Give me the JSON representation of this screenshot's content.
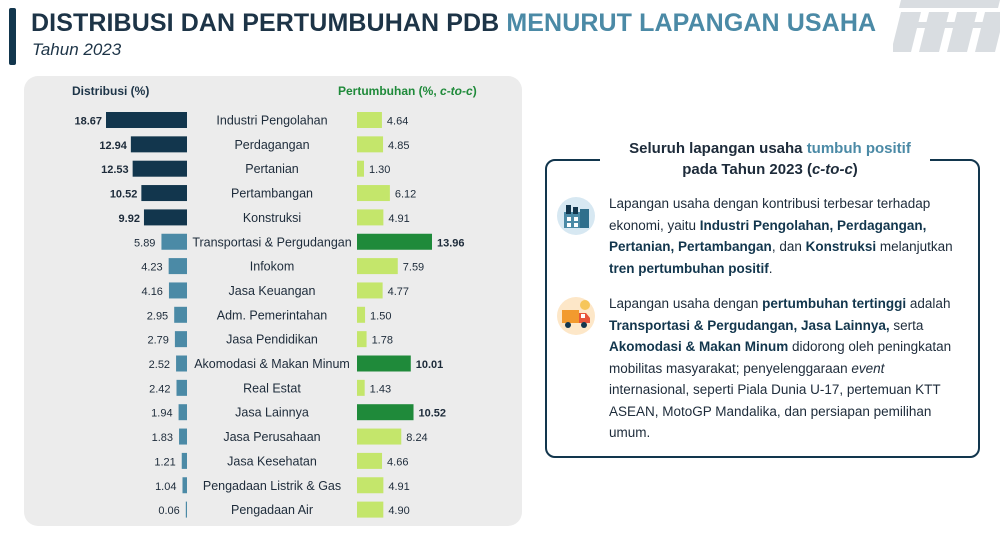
{
  "header": {
    "title_main": "DISTRIBUSI DAN PERTUMBUHAN PDB",
    "title_accent": "MENURUT LAPANGAN USAHA",
    "subtitle": "Tahun 2023"
  },
  "colors": {
    "dark_blue": "#12364d",
    "mid_blue": "#4b8aa6",
    "light_green": "#c4e66b",
    "dark_green": "#1f8a3a",
    "panel_bg": "#ececec"
  },
  "chart_data": {
    "type": "bar",
    "title": "",
    "xlabel": "",
    "ylabel": "",
    "categories": [
      "Industri Pengolahan",
      "Perdagangan",
      "Pertanian",
      "Pertambangan",
      "Konstruksi",
      "Transportasi & Pergudangan",
      "Infokom",
      "Jasa Keuangan",
      "Adm. Pemerintahan",
      "Jasa Pendidikan",
      "Akomodasi & Makan Minum",
      "Real Estat",
      "Jasa Lainnya",
      "Jasa Perusahaan",
      "Jasa Kesehatan",
      "Pengadaan Listrik & Gas",
      "Pengadaan Air"
    ],
    "series": [
      {
        "name": "Distribusi (%)",
        "values": [
          18.67,
          12.94,
          12.53,
          10.52,
          9.92,
          5.89,
          4.23,
          4.16,
          2.95,
          2.79,
          2.52,
          2.42,
          1.94,
          1.83,
          1.21,
          1.04,
          0.06
        ]
      },
      {
        "name": "Pertumbuhan (%, c-to-c)",
        "values": [
          4.64,
          4.85,
          1.3,
          6.12,
          4.91,
          13.96,
          7.59,
          4.77,
          1.5,
          1.78,
          10.01,
          1.43,
          10.52,
          8.24,
          4.66,
          4.91,
          4.9
        ]
      }
    ],
    "highlight": {
      "distribution_top": [
        "Industri Pengolahan",
        "Perdagangan",
        "Pertanian",
        "Pertambangan",
        "Konstruksi"
      ],
      "growth_top": [
        "Transportasi & Pergudangan",
        "Akomodasi & Makan Minum",
        "Jasa Lainnya"
      ]
    },
    "legend": {
      "left": "Distribusi (%)",
      "right_prefix": "Pertumbuhan (%, ",
      "right_italic": "c-to-c",
      "right_suffix": ")"
    },
    "grid": false
  },
  "info": {
    "heading_line1_a": "Seluruh lapangan usaha ",
    "heading_line1_b": "tumbuh positif",
    "heading_line2_a": "pada Tahun 2023 (",
    "heading_line2_b": "c-to-c",
    "heading_line2_c": ")",
    "p1": {
      "a": "Lapangan usaha dengan kontribusi terbesar terhadap ekonomi, yaitu ",
      "b": "Industri Pengolahan, Perdagangan, Pertanian, Pertambangan",
      "c": ", dan ",
      "d": "Konstruksi",
      "e": " melanjutkan ",
      "f": "tren pertumbuhan positif",
      "g": "."
    },
    "p2": {
      "a": "Lapangan usaha dengan ",
      "b": "pertumbuhan tertinggi",
      "c": " adalah ",
      "d": "Transportasi & Pergudangan, Jasa Lainnya,",
      "e": " serta ",
      "f": "Akomodasi & Makan Minum",
      "g": " didorong oleh peningkatan mobilitas masyarakat; penyelenggaraan ",
      "h": "event",
      "i": " internasional, seperti Piala Dunia U-17, pertemuan KTT ASEAN, MotoGP Mandalika, dan persiapan pemilihan umum."
    },
    "icons": [
      "factory-icon",
      "delivery-truck-icon"
    ]
  }
}
